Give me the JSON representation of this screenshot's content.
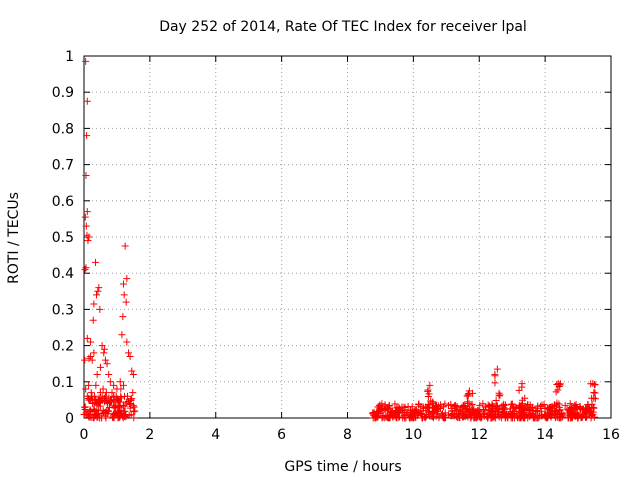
{
  "chart_data": {
    "type": "scatter",
    "title": "Day 252 of 2014, Rate Of TEC Index for receiver lpal",
    "xlabel": "GPS time / hours",
    "ylabel": "ROTI / TECUs",
    "xlim": [
      0,
      16
    ],
    "ylim": [
      0,
      1
    ],
    "xticks": [
      0,
      2,
      4,
      6,
      8,
      10,
      12,
      14,
      16
    ],
    "yticks": [
      0,
      0.1,
      0.2,
      0.3,
      0.4,
      0.5,
      0.6,
      0.7,
      0.8,
      0.9,
      1
    ],
    "xtick_labels": [
      "0",
      "2",
      "4",
      "6",
      "8",
      "10",
      "12",
      "14",
      "16"
    ],
    "ytick_labels": [
      "0",
      "0.1",
      "0.2",
      "0.3",
      "0.4",
      "0.5",
      "0.6",
      "0.7",
      "0.8",
      "0.9",
      "1"
    ],
    "grid": true,
    "marker": "plus",
    "series_color": "#ff0000",
    "series": [
      {
        "x": [
          0.05,
          0.1,
          0.08,
          0.06,
          0.1,
          0.04,
          0.07,
          0.09,
          0.15,
          0.12,
          0.03,
          0.06,
          0.1,
          0.2,
          0.35,
          0.45,
          0.42,
          0.38,
          0.48,
          0.3,
          0.28,
          0.55,
          0.6,
          0.65,
          0.7,
          0.62,
          0.75,
          0.8,
          1.25,
          1.3,
          1.2,
          1.22,
          1.28,
          1.18,
          1.15,
          1.3,
          1.35,
          1.4,
          1.45,
          1.5,
          0.2,
          0.25,
          0.3,
          0.15,
          0.5,
          0.4,
          0.9,
          1.0,
          1.1,
          0.02,
          0.0,
          0.05,
          0.1,
          0.14,
          0.18,
          0.22,
          0.26,
          0.32,
          0.5,
          0.55,
          0.58,
          0.65,
          0.72,
          0.8,
          0.85,
          0.9,
          0.95,
          1.05,
          1.12,
          1.2,
          1.32,
          1.38,
          1.42,
          1.48,
          1.52,
          0.44,
          0.36,
          0.24,
          0.62,
          0.68
        ],
        "y": [
          0.985,
          0.875,
          0.78,
          0.67,
          0.57,
          0.555,
          0.53,
          0.505,
          0.5,
          0.49,
          0.41,
          0.415,
          0.22,
          0.21,
          0.43,
          0.36,
          0.35,
          0.34,
          0.3,
          0.315,
          0.27,
          0.2,
          0.18,
          0.16,
          0.15,
          0.19,
          0.12,
          0.1,
          0.475,
          0.385,
          0.37,
          0.34,
          0.32,
          0.28,
          0.23,
          0.21,
          0.18,
          0.17,
          0.13,
          0.12,
          0.17,
          0.16,
          0.18,
          0.165,
          0.14,
          0.12,
          0.09,
          0.08,
          0.1,
          0.16,
          0.01,
          0.08,
          0.06,
          0.09,
          0.05,
          0.07,
          0.04,
          0.06,
          0.07,
          0.05,
          0.08,
          0.06,
          0.04,
          0.05,
          0.07,
          0.06,
          0.03,
          0.05,
          0.08,
          0.09,
          0.06,
          0.04,
          0.05,
          0.07,
          0.03,
          0.05,
          0.09,
          0.06,
          0.045,
          0.07
        ]
      }
    ],
    "dense_bands": [
      {
        "x_start": 0.0,
        "x_end": 1.55,
        "y_min": 0.0,
        "y_max": 0.06
      },
      {
        "x_start": 8.75,
        "x_end": 15.5,
        "y_min": 0.0,
        "y_max": 0.04
      }
    ],
    "spikes": [
      {
        "x": 10.5,
        "y": 0.09
      },
      {
        "x": 11.7,
        "y": 0.075
      },
      {
        "x": 12.55,
        "y": 0.135
      },
      {
        "x": 13.3,
        "y": 0.095
      },
      {
        "x": 14.4,
        "y": 0.095
      },
      {
        "x": 15.45,
        "y": 0.095
      }
    ]
  }
}
